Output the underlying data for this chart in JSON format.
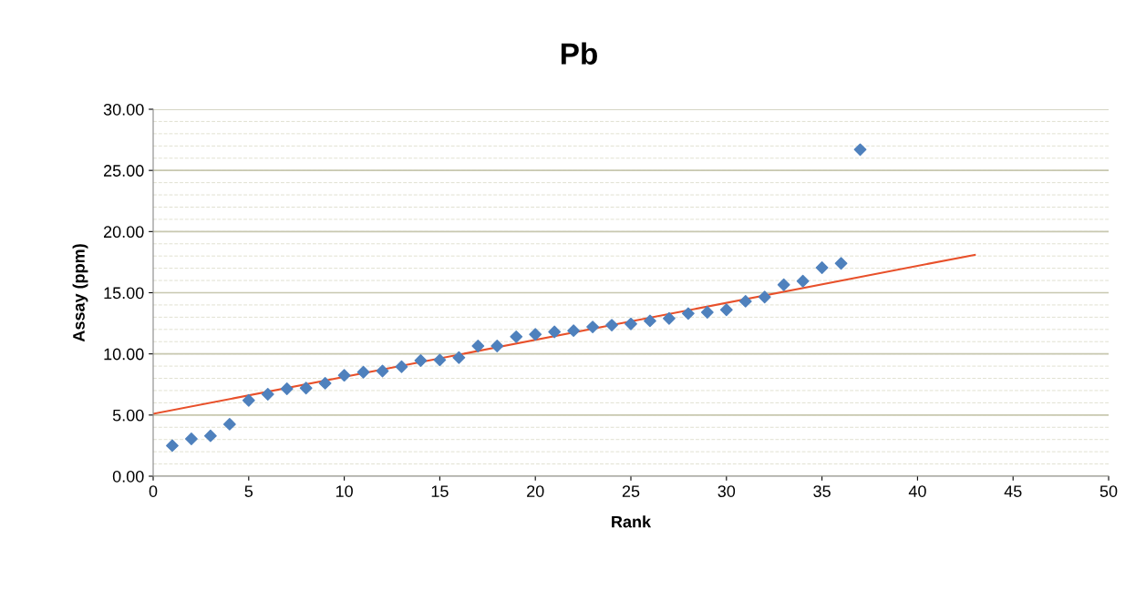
{
  "chart_data": {
    "type": "scatter",
    "title": "Pb",
    "xlabel": "Rank",
    "ylabel": "Assay (ppm)",
    "xlim": [
      0,
      50
    ],
    "xticks": [
      0,
      5,
      10,
      15,
      20,
      25,
      30,
      35,
      40,
      45,
      50
    ],
    "ylim": [
      0,
      30
    ],
    "yticks": [
      {
        "value": 0,
        "label": "0.00"
      },
      {
        "value": 5,
        "label": "5.00"
      },
      {
        "value": 10,
        "label": "10.00"
      },
      {
        "value": 15,
        "label": "15.00"
      },
      {
        "value": 20,
        "label": "20.00"
      },
      {
        "value": 25,
        "label": "25.00"
      },
      {
        "value": 30,
        "label": "30.00"
      }
    ],
    "grid": "y",
    "legend": false,
    "series": [
      {
        "marker": "diamond",
        "color": "#4f81bd",
        "x": [
          1,
          2,
          3,
          4,
          5,
          6,
          7,
          8,
          9,
          10,
          11,
          12,
          13,
          14,
          15,
          16,
          17,
          18,
          19,
          20,
          21,
          22,
          23,
          24,
          25,
          26,
          27,
          28,
          29,
          30,
          31,
          32,
          33,
          34,
          35,
          36,
          37
        ],
        "values": [
          2.5,
          3.05,
          3.3,
          4.25,
          6.2,
          6.7,
          7.15,
          7.2,
          7.6,
          8.25,
          8.5,
          8.6,
          8.95,
          9.45,
          9.5,
          9.7,
          10.65,
          10.65,
          11.4,
          11.6,
          11.8,
          11.9,
          12.2,
          12.35,
          12.45,
          12.7,
          12.9,
          13.3,
          13.4,
          13.6,
          14.3,
          14.65,
          15.65,
          15.95,
          17.05,
          17.4,
          26.7
        ]
      },
      {
        "type": "line",
        "color": "#e8502a",
        "x": [
          0,
          43
        ],
        "values": [
          5.1,
          18.1
        ]
      }
    ]
  }
}
